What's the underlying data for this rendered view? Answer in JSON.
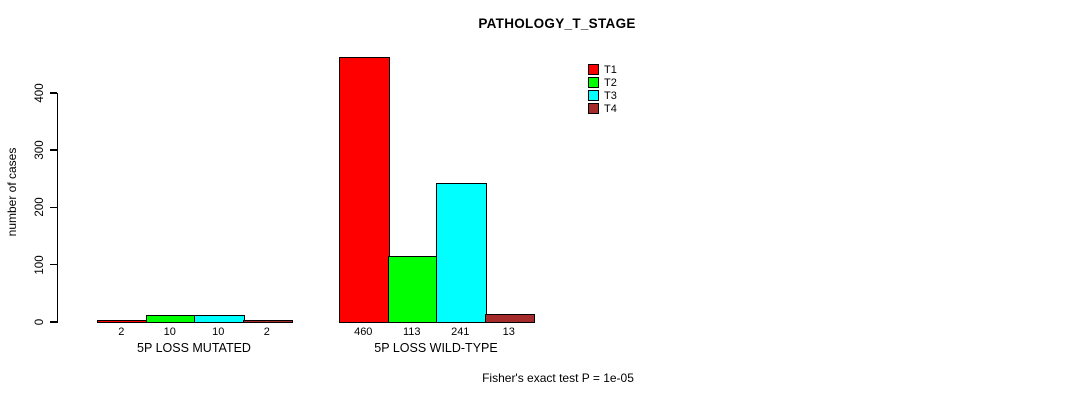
{
  "title": "PATHOLOGY_T_STAGE",
  "footer": "Fisher's exact test P = 1e-05",
  "chart_data": {
    "type": "bar",
    "title": "PATHOLOGY_T_STAGE",
    "xlabel": "",
    "ylabel": "number of cases",
    "categories": [
      "5P LOSS MUTATED",
      "5P LOSS WILD-TYPE"
    ],
    "series": [
      {
        "name": "T1",
        "color": "#ff0000",
        "values": [
          2,
          460
        ]
      },
      {
        "name": "T2",
        "color": "#00ff00",
        "values": [
          10,
          113
        ]
      },
      {
        "name": "T3",
        "color": "#00ffff",
        "values": [
          10,
          241
        ]
      },
      {
        "name": "T4",
        "color": "#a52a2a",
        "values": [
          2,
          13
        ]
      }
    ],
    "bar_value_labels": [
      [
        "2",
        "10",
        "10",
        "2"
      ],
      [
        "460",
        "113",
        "241",
        "13"
      ]
    ],
    "yticks": [
      0,
      100,
      200,
      300,
      400
    ],
    "ylim": [
      0,
      400
    ],
    "grid": false,
    "legend_position": "top-right",
    "legend_entries": [
      "T1",
      "T2",
      "T3",
      "T4"
    ],
    "annotation": "Fisher's exact test P = 1e-05"
  }
}
